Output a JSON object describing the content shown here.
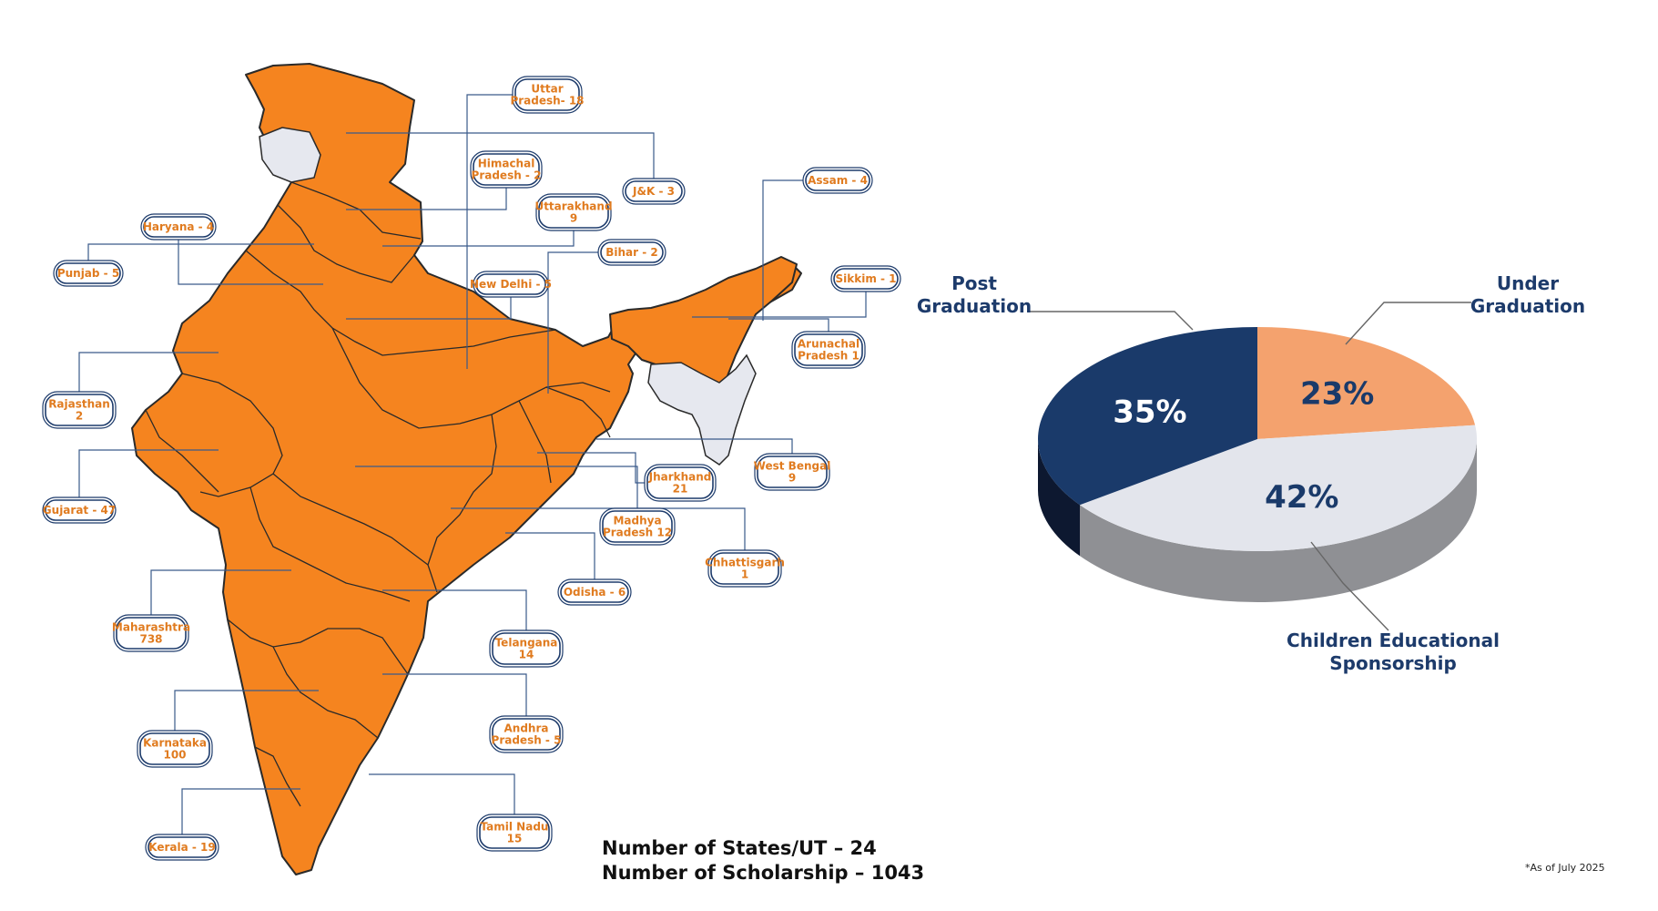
{
  "map": {
    "states": [
      {
        "id": "uttar-pradesh",
        "lines": [
          "Uttar",
          "Pradesh- 18"
        ],
        "count": 18
      },
      {
        "id": "jk",
        "lines": [
          "J&K - 3"
        ],
        "count": 3
      },
      {
        "id": "himachal-pradesh",
        "lines": [
          "Himachal",
          "Pradesh - 2"
        ],
        "count": 2
      },
      {
        "id": "uttarakhand",
        "lines": [
          "Uttarakhand",
          "9"
        ],
        "count": 9
      },
      {
        "id": "haryana",
        "lines": [
          "Haryana - 4"
        ],
        "count": 4
      },
      {
        "id": "punjab",
        "lines": [
          "Punjab - 5"
        ],
        "count": 5
      },
      {
        "id": "new-delhi",
        "lines": [
          "New Delhi - 5"
        ],
        "count": 5
      },
      {
        "id": "bihar",
        "lines": [
          "Bihar - 2"
        ],
        "count": 2
      },
      {
        "id": "assam",
        "lines": [
          "Assam - 4"
        ],
        "count": 4
      },
      {
        "id": "sikkim",
        "lines": [
          "Sikkim - 1"
        ],
        "count": 1
      },
      {
        "id": "arunachal-pradesh",
        "lines": [
          "Arunachal",
          "Pradesh 1"
        ],
        "count": 1
      },
      {
        "id": "rajasthan",
        "lines": [
          "Rajasthan",
          "2"
        ],
        "count": 2
      },
      {
        "id": "west-bengal",
        "lines": [
          "West Bengal",
          "9"
        ],
        "count": 9
      },
      {
        "id": "jharkhand",
        "lines": [
          "Jharkhand",
          "21"
        ],
        "count": 21
      },
      {
        "id": "gujarat",
        "lines": [
          "Gujarat - 47"
        ],
        "count": 47
      },
      {
        "id": "madhya-pradesh",
        "lines": [
          "Madhya",
          "Pradesh 12"
        ],
        "count": 12
      },
      {
        "id": "chhattisgarh",
        "lines": [
          "Chhattisgarh",
          "1"
        ],
        "count": 1
      },
      {
        "id": "odisha",
        "lines": [
          "Odisha - 6"
        ],
        "count": 6
      },
      {
        "id": "maharashtra",
        "lines": [
          "Maharashtra",
          "738"
        ],
        "count": 738
      },
      {
        "id": "telangana",
        "lines": [
          "Telangana",
          "14"
        ],
        "count": 14
      },
      {
        "id": "andhra-pradesh",
        "lines": [
          "Andhra",
          "Pradesh - 5"
        ],
        "count": 5
      },
      {
        "id": "karnataka",
        "lines": [
          "Karnataka",
          "100"
        ],
        "count": 100
      },
      {
        "id": "tamil-nadu",
        "lines": [
          "Tamil Nadu",
          "15"
        ],
        "count": 15
      },
      {
        "id": "kerala",
        "lines": [
          "Kerala - 19"
        ],
        "count": 19
      }
    ]
  },
  "summary": {
    "states_line": "Number of States/UT – 24",
    "scholarship_line": "Number of Scholarship – 1043"
  },
  "note": "*As of July 2025",
  "chart_data": {
    "type": "pie",
    "title": "",
    "slices": [
      {
        "lines": [
          "Under",
          "Graduation"
        ],
        "value": 23,
        "label": "23%",
        "color": "#f4a26e",
        "side_color": "#5c2a0e"
      },
      {
        "lines": [
          "Children Educational",
          "Sponsorship"
        ],
        "value": 42,
        "label": "42%",
        "color": "#e3e5ec",
        "side_color": "#8f9094"
      },
      {
        "lines": [
          "Post",
          "Graduation"
        ],
        "value": 35,
        "label": "35%",
        "color": "#1a3a6a",
        "side_color": "#0d1830"
      }
    ],
    "legend": "callouts"
  },
  "colors": {
    "map_fill": "#f5841f",
    "map_unmapped": "#e6e8ef",
    "map_border": "#2a2a2a",
    "callout_border": "#1d3b6b",
    "callout_text": "#e07b1f",
    "chart_text": "#1d3b6b"
  }
}
